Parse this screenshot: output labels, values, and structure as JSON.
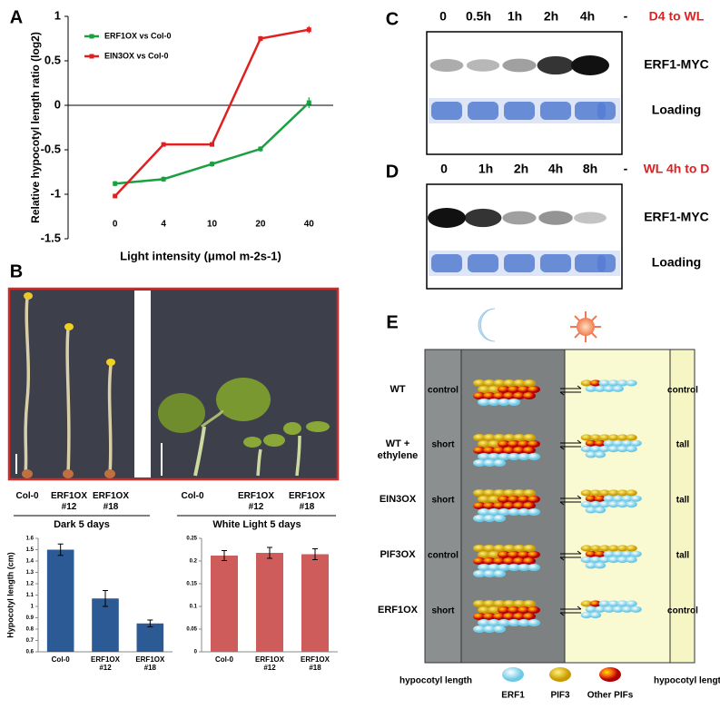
{
  "chart_data": [
    {
      "type": "line",
      "ylabel": "Relative hypocotyl length ratio (log2)",
      "xlabel": "Light intensity (μmol m-2s-1)",
      "categories": [
        0,
        4,
        10,
        20,
        40
      ],
      "series": [
        {
          "name": "ERF1OX vs Col-0",
          "color": "#1aa040",
          "values": [
            -0.88,
            -0.83,
            -0.66,
            -0.49,
            0.03
          ],
          "errors": [
            0.03,
            0.03,
            0.03,
            0.03,
            0.06
          ]
        },
        {
          "name": "EIN3OX vs Col-0",
          "color": "#e02020",
          "values": [
            -1.02,
            -0.44,
            -0.44,
            0.75,
            0.85
          ],
          "errors": [
            0.02,
            0.02,
            0.02,
            0.03,
            0.04
          ]
        }
      ],
      "ylim": [
        -1.5,
        1
      ],
      "yticks": [
        -1.5,
        -1,
        -0.5,
        0,
        0.5,
        1
      ],
      "legend": "upper left"
    },
    {
      "type": "bar",
      "ylabel": "Hypocotyl  length (cm)",
      "categories": [
        "Col-0",
        "ERF1OX #12",
        "ERF1OX #18"
      ],
      "values": [
        1.5,
        1.07,
        0.85
      ],
      "errors": [
        0.05,
        0.07,
        0.03
      ],
      "color": "#2c5a94",
      "ylim": [
        0.6,
        1.6
      ],
      "yticks": [
        0.6,
        0.7,
        0.8,
        0.9,
        1,
        1.1,
        1.2,
        1.3,
        1.4,
        1.5,
        1.6
      ]
    },
    {
      "type": "bar",
      "categories": [
        "Col-0",
        "ERF1OX #12",
        "ERF1OX #18"
      ],
      "values": [
        0.212,
        0.218,
        0.215
      ],
      "errors": [
        0.011,
        0.012,
        0.012
      ],
      "color": "#cd5c5a",
      "ylim": [
        0,
        0.25
      ],
      "yticks": [
        0,
        0.05,
        0.1,
        0.15,
        0.2,
        0.25
      ]
    }
  ],
  "panel_labels": [
    "A",
    "B",
    "C",
    "D",
    "E"
  ],
  "panel_b": {
    "dark": {
      "lanes": [
        "Col-0",
        "ERF1OX #12",
        "ERF1OX #18"
      ],
      "caption": "Dark 5 days"
    },
    "light": {
      "lanes": [
        "Col-0",
        "ERF1OX #12",
        "ERF1OX #18"
      ],
      "caption": "White Light 5 days"
    }
  },
  "panel_c": {
    "lanes": [
      "0",
      "0.5h",
      "1h",
      "2h",
      "4h",
      "-"
    ],
    "condition": "D4 to WL",
    "rows": [
      "ERF1-MYC",
      "Loading"
    ]
  },
  "panel_d": {
    "lanes": [
      "0",
      "1h",
      "2h",
      "4h",
      "8h",
      "-"
    ],
    "condition": "WL 4h to D",
    "rows": [
      "ERF1-MYC",
      "Loading"
    ]
  },
  "panel_e": {
    "rows": [
      {
        "label": "WT",
        "dark": "control",
        "light": "control"
      },
      {
        "label": "WT + ethylene",
        "dark": "short",
        "light": "tall"
      },
      {
        "label": "EIN3OX",
        "dark": "short",
        "light": "tall"
      },
      {
        "label": "PIF3OX",
        "dark": "control",
        "light": "tall"
      },
      {
        "label": "ERF1OX",
        "dark": "short",
        "light": "control"
      }
    ],
    "footer": {
      "left": "hypocotyl length",
      "legend": [
        "ERF1",
        "PIF3",
        "Other PIFs"
      ],
      "right": "hypocotyl length"
    }
  }
}
